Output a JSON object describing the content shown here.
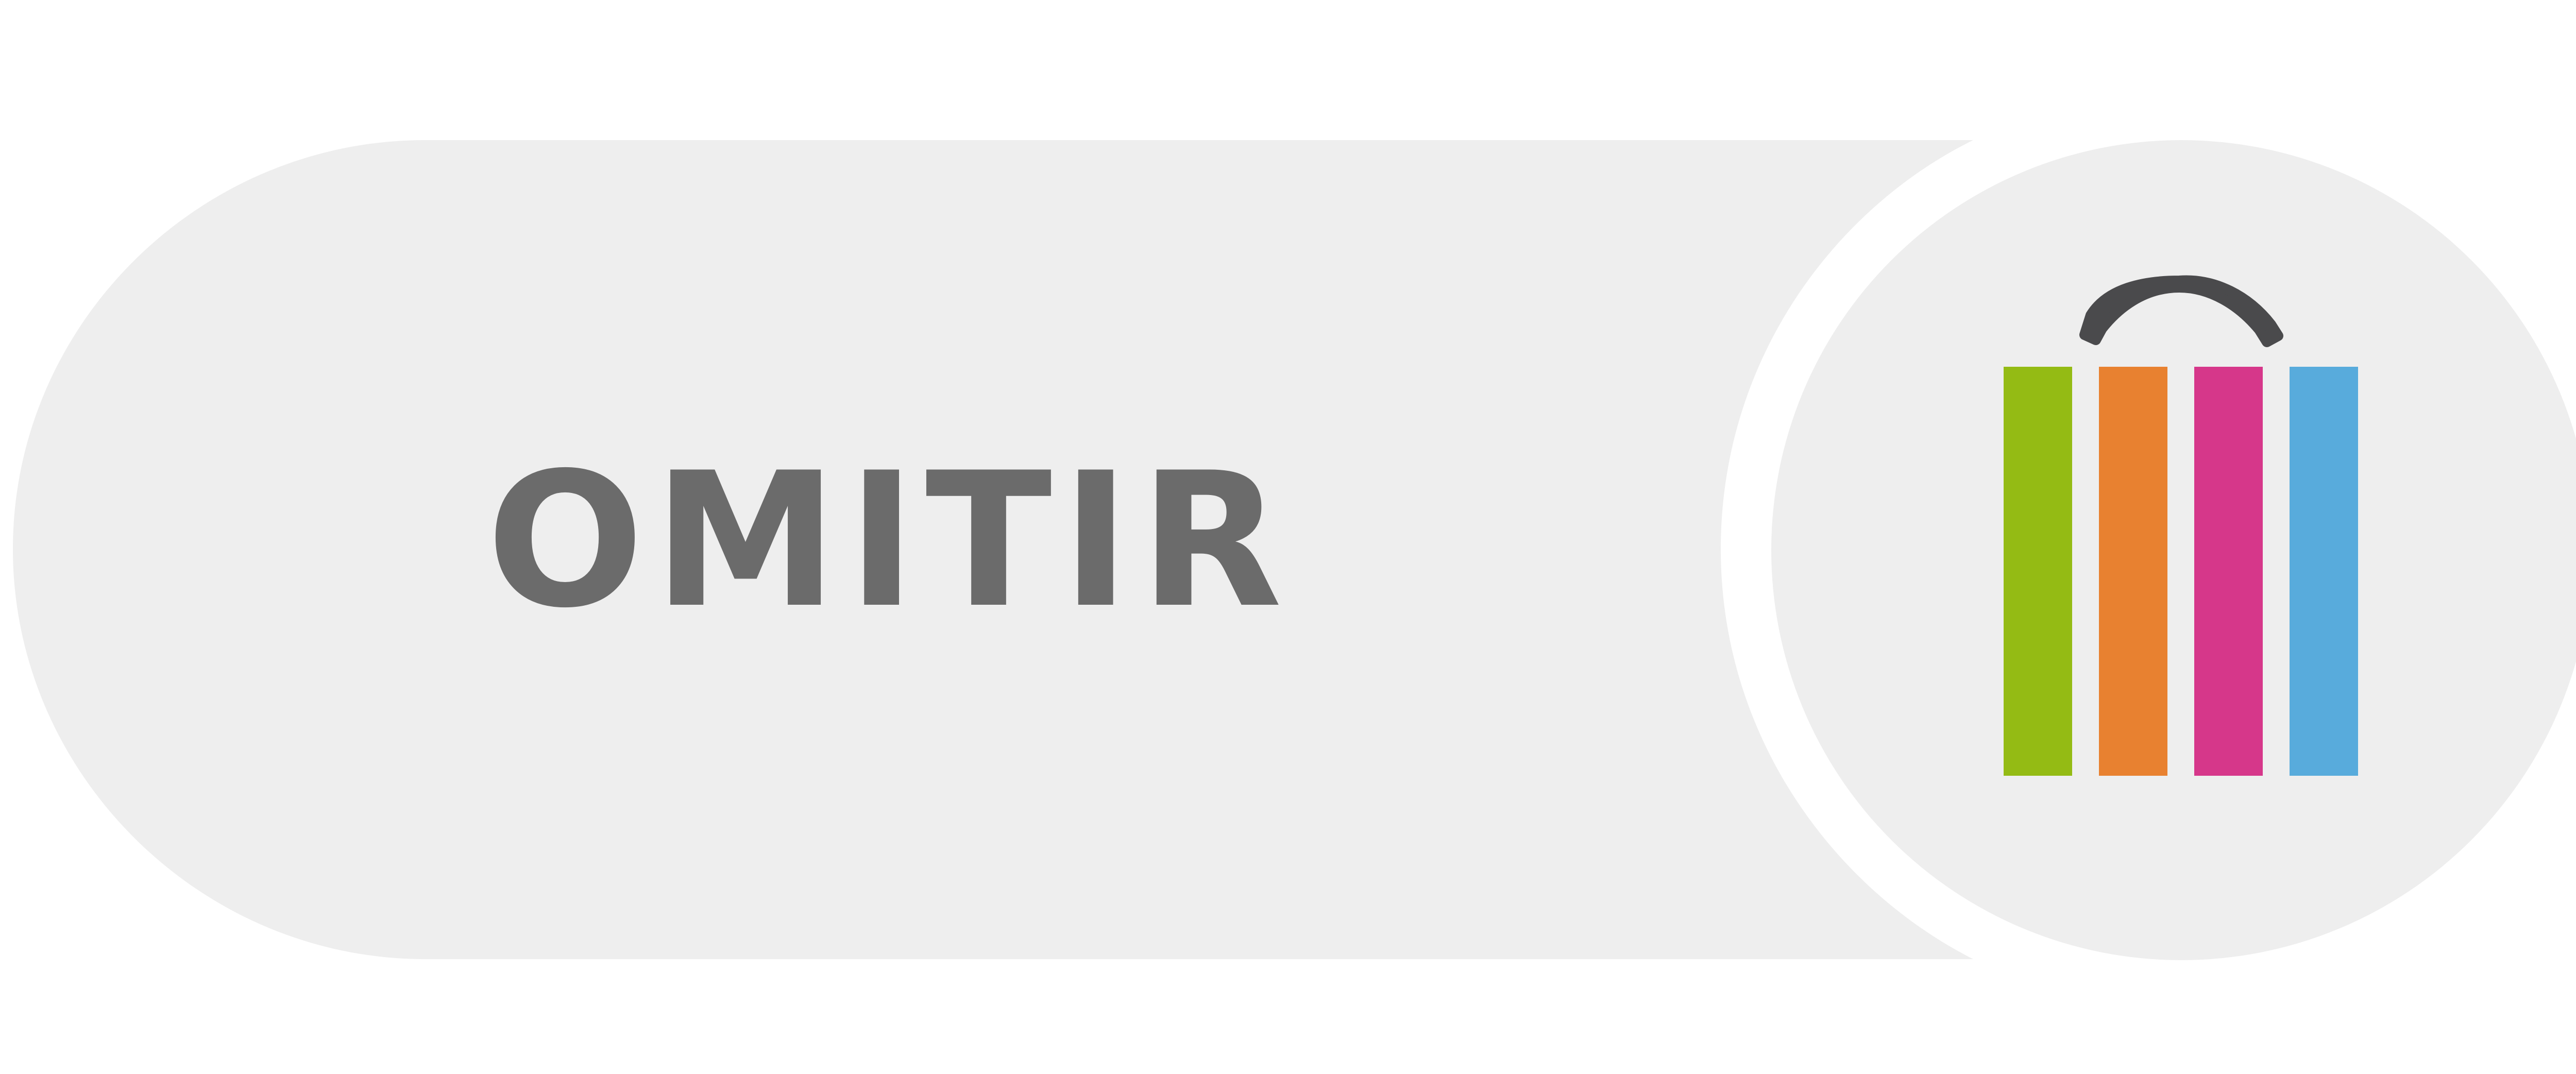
{
  "button": {
    "label": "OMITIR"
  },
  "colors": {
    "background": "#ffffff",
    "pill": "#eeeeee",
    "label_text": "#6b6b6b",
    "handle": "#4a4a4c",
    "bar_green": "#94bb14",
    "bar_orange": "#e88130",
    "bar_pink": "#d6378a",
    "bar_blue": "#58abdc"
  },
  "icon": {
    "name": "shopping-bag-icon",
    "stripe_colors": [
      "green",
      "orange",
      "pink",
      "blue"
    ]
  }
}
